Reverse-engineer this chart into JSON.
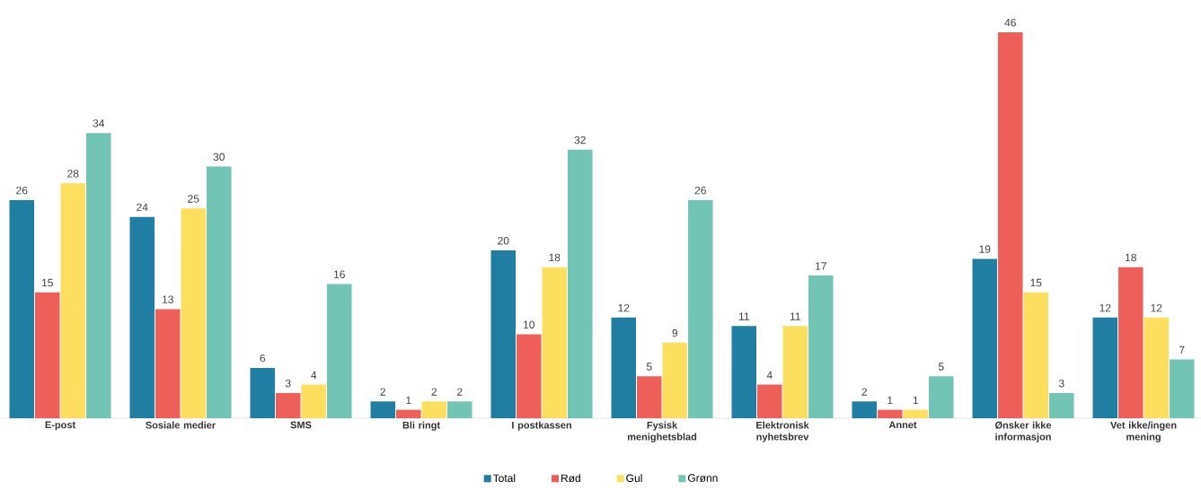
{
  "chart_data": {
    "type": "bar",
    "categories": [
      "E-post",
      "Sosiale medier",
      "SMS",
      "Bli ringt",
      "I postkassen",
      "Fysisk menighetsblad",
      "Elektronisk nyhetsbrev",
      "Annet",
      "Ønsker ikke informasjon",
      "Vet ikke/ingen mening"
    ],
    "series": [
      {
        "name": "Total",
        "color": "#1f7ea1",
        "values": [
          26,
          24,
          6,
          2,
          20,
          12,
          11,
          2,
          19,
          12
        ]
      },
      {
        "name": "Rød",
        "color": "#ef5f5a",
        "values": [
          15,
          13,
          3,
          1,
          10,
          5,
          4,
          1,
          46,
          18
        ]
      },
      {
        "name": "Gul",
        "color": "#fddf5f",
        "values": [
          28,
          25,
          4,
          2,
          18,
          9,
          11,
          1,
          15,
          12
        ]
      },
      {
        "name": "Grønn",
        "color": "#72c4b4",
        "values": [
          34,
          30,
          16,
          2,
          32,
          26,
          17,
          5,
          3,
          7
        ]
      }
    ],
    "data_labels": true,
    "legend": "bottom"
  }
}
